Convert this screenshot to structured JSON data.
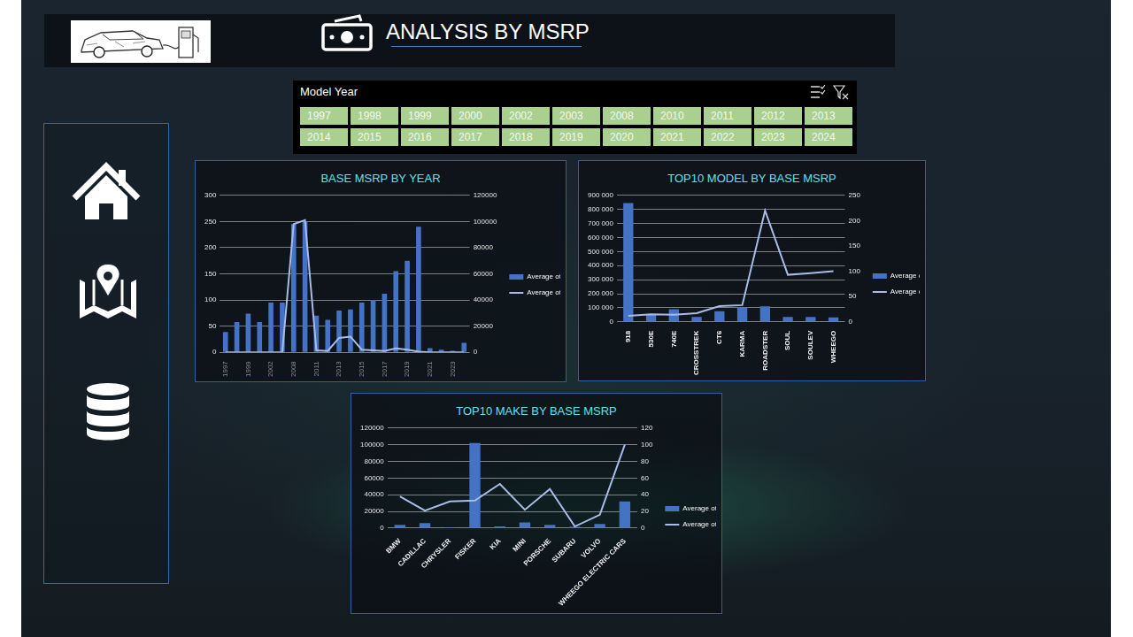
{
  "header": {
    "title": "ANALYSIS BY MSRP"
  },
  "slicer": {
    "title": "Model Year",
    "items": [
      "1997",
      "1998",
      "1999",
      "2000",
      "2002",
      "2003",
      "2008",
      "2010",
      "2011",
      "2012",
      "2013",
      "2014",
      "2015",
      "2016",
      "2017",
      "2018",
      "2019",
      "2020",
      "2021",
      "2022",
      "2023",
      "2024"
    ]
  },
  "chart_data": [
    {
      "type": "bar",
      "title": "BASE MSRP BY  YEAR",
      "categories": [
        "1997",
        null,
        "1999",
        null,
        "2002",
        null,
        "2008",
        null,
        "2011",
        null,
        "2013",
        null,
        "2015",
        null,
        "2017",
        null,
        "2019",
        null,
        "2021",
        null,
        "2023",
        null
      ],
      "series": [
        {
          "name": "Average of Electric Range",
          "type": "bar",
          "color": "#4472c4",
          "values": [
            39,
            58,
            74,
            58,
            95,
            95,
            245,
            250,
            70,
            62,
            80,
            82,
            95,
            100,
            112,
            155,
            175,
            240,
            8,
            5,
            3,
            18
          ]
        },
        {
          "name": "Average of Base MSRP",
          "type": "line",
          "color": "#a9bce8",
          "axis": "y2",
          "values": [
            0,
            0,
            0,
            0,
            0,
            0,
            98000,
            101000,
            1500,
            1000,
            11000,
            12000,
            2000,
            1500,
            1000,
            3000,
            2000,
            500,
            0,
            0,
            0,
            0
          ]
        }
      ],
      "ylim": [
        0,
        300
      ],
      "yticks": [
        0,
        50,
        100,
        150,
        200,
        250,
        300
      ],
      "y2lim": [
        0,
        120000
      ],
      "y2ticks": [
        0,
        20000,
        40000,
        60000,
        80000,
        100000,
        120000
      ],
      "grid": true,
      "legend": "right"
    },
    {
      "type": "bar",
      "title": "TOP10 MODEL BY BASE MSRP",
      "categories": [
        "918",
        "530E",
        "740E",
        "CROSSTREK",
        "CT6",
        "KARMA",
        "ROADSTER",
        "SOUL",
        "SOULEV",
        "WHEEGO"
      ],
      "series": [
        {
          "name": "Average of Base MSRP",
          "type": "bar",
          "color": "#4472c4",
          "values": [
            845000,
            55000,
            90000,
            35000,
            75000,
            102000,
            110000,
            35000,
            35000,
            32000
          ]
        },
        {
          "name": "Average of Electric Range",
          "type": "line",
          "color": "#a9bce8",
          "axis": "y2",
          "values": [
            12,
            15,
            14,
            17,
            31,
            33,
            220,
            93,
            96,
            100
          ]
        }
      ],
      "ylim": [
        0,
        900000
      ],
      "yticks": [
        0,
        {
          "value": 100000,
          "label": "100 000"
        },
        {
          "value": 200000,
          "label": "200 000"
        },
        {
          "value": 300000,
          "label": "300 000"
        },
        {
          "value": 400000,
          "label": "400 000"
        },
        {
          "value": 500000,
          "label": "500 000"
        },
        {
          "value": 600000,
          "label": "600 000"
        },
        {
          "value": 700000,
          "label": "700 000"
        },
        {
          "value": 800000,
          "label": "800 000"
        },
        {
          "value": 900000,
          "label": "900 000"
        }
      ],
      "y2lim": [
        0,
        250
      ],
      "y2ticks": [
        0,
        50,
        100,
        150,
        200,
        250
      ],
      "grid": true,
      "legend": "right"
    },
    {
      "type": "bar",
      "title": "TOP10 MAKE BY BASE MSRP",
      "categories": [
        "BMW",
        "CADILLAC",
        "CHRYSLER",
        "FISKER",
        "KIA",
        "MINI",
        "PORSCHE",
        "SUBARU",
        "VOLVO",
        "WHEEGO ELECTRIC CARS"
      ],
      "series": [
        {
          "name": "Average of Base MSRP",
          "type": "bar",
          "color": "#4472c4",
          "values": [
            4000,
            6000,
            1000,
            102000,
            2000,
            7000,
            4000,
            1500,
            5000,
            32000
          ]
        },
        {
          "name": "Average of Electric Range",
          "type": "line",
          "color": "#a9bce8",
          "axis": "y2",
          "values": [
            38,
            21,
            32,
            33,
            53,
            22,
            47,
            2,
            16,
            100
          ]
        }
      ],
      "ylim": [
        0,
        120000
      ],
      "yticks": [
        0,
        20000,
        40000,
        60000,
        80000,
        100000,
        120000
      ],
      "y2lim": [
        0,
        120
      ],
      "y2ticks": [
        0,
        20,
        40,
        60,
        80,
        100,
        120
      ],
      "grid": true,
      "legend": "right"
    }
  ]
}
